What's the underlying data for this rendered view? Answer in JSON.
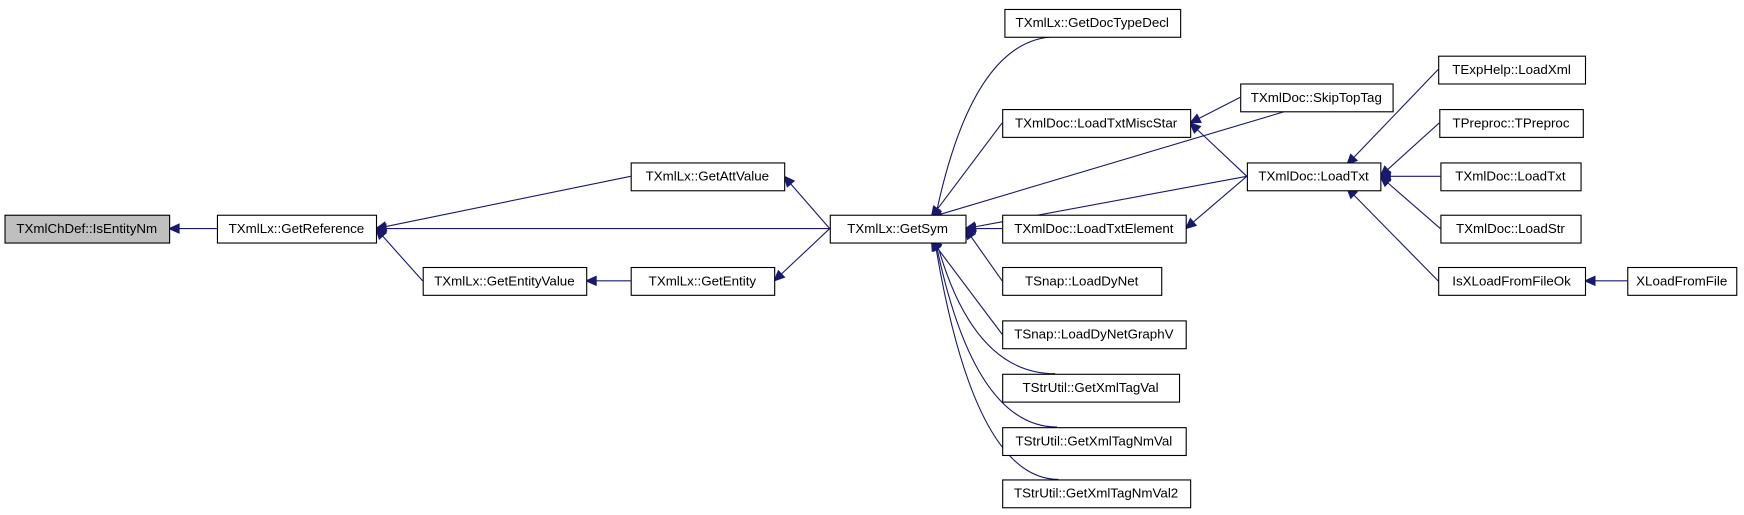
{
  "graph": {
    "edge_color": "#191970",
    "highlight_fill": "#bfbfbf",
    "nodes": [
      {
        "id": "isentitynm",
        "label": "TXmlChDef::IsEntityNm",
        "highlight": true
      },
      {
        "id": "getreference",
        "label": "TXmlLx::GetReference"
      },
      {
        "id": "getattvalue",
        "label": "TXmlLx::GetAttValue"
      },
      {
        "id": "getentityvalue",
        "label": "TXmlLx::GetEntityValue"
      },
      {
        "id": "getentity",
        "label": "TXmlLx::GetEntity"
      },
      {
        "id": "getsym",
        "label": "TXmlLx::GetSym"
      },
      {
        "id": "getdoctypedecl",
        "label": "TXmlLx::GetDocTypeDecl"
      },
      {
        "id": "skiptoptag",
        "label": "TXmlDoc::SkipTopTag"
      },
      {
        "id": "loadtxtmiscstar",
        "label": "TXmlDoc::LoadTxtMiscStar"
      },
      {
        "id": "loadtxt",
        "label": "TXmlDoc::LoadTxt"
      },
      {
        "id": "loadtxtelement",
        "label": "TXmlDoc::LoadTxtElement"
      },
      {
        "id": "loaddynet",
        "label": "TSnap::LoadDyNet"
      },
      {
        "id": "loaddynetgraphv",
        "label": "TSnap::LoadDyNetGraphV"
      },
      {
        "id": "getxmltagval",
        "label": "TStrUtil::GetXmlTagVal"
      },
      {
        "id": "getxmltagnmval",
        "label": "TStrUtil::GetXmlTagNmVal"
      },
      {
        "id": "getxmltagnmval2",
        "label": "TStrUtil::GetXmlTagNmVal2"
      },
      {
        "id": "loadxml",
        "label": "TExpHelp::LoadXml"
      },
      {
        "id": "tpreproc",
        "label": "TPreproc::TPreproc"
      },
      {
        "id": "loadtxt2",
        "label": "TXmlDoc::LoadTxt"
      },
      {
        "id": "loadstr",
        "label": "TXmlDoc::LoadStr"
      },
      {
        "id": "isxloadfromfileok",
        "label": "IsXLoadFromFileOk"
      },
      {
        "id": "xloadfromfile",
        "label": "XLoadFromFile"
      }
    ],
    "edges": [
      {
        "from": "getreference",
        "to": "isentitynm"
      },
      {
        "from": "getattvalue",
        "to": "getreference"
      },
      {
        "from": "getsym",
        "to": "getreference"
      },
      {
        "from": "getentityvalue",
        "to": "getreference"
      },
      {
        "from": "getsym",
        "to": "getattvalue"
      },
      {
        "from": "getentity",
        "to": "getentityvalue"
      },
      {
        "from": "getsym",
        "to": "getentity"
      },
      {
        "from": "getdoctypedecl",
        "to": "getsym"
      },
      {
        "from": "skiptoptag",
        "to": "getsym"
      },
      {
        "from": "loadtxtmiscstar",
        "to": "getsym"
      },
      {
        "from": "loadtxt",
        "to": "getsym"
      },
      {
        "from": "loadtxtelement",
        "to": "getsym"
      },
      {
        "from": "loaddynet",
        "to": "getsym"
      },
      {
        "from": "loaddynetgraphv",
        "to": "getsym"
      },
      {
        "from": "getxmltagval",
        "to": "getsym"
      },
      {
        "from": "getxmltagnmval",
        "to": "getsym"
      },
      {
        "from": "getxmltagnmval2",
        "to": "getsym"
      },
      {
        "from": "skiptoptag",
        "to": "loadtxtmiscstar"
      },
      {
        "from": "loadtxt",
        "to": "loadtxtmiscstar"
      },
      {
        "from": "loadtxt",
        "to": "loadtxtelement"
      },
      {
        "from": "loadxml",
        "to": "loadtxt"
      },
      {
        "from": "tpreproc",
        "to": "loadtxt"
      },
      {
        "from": "loadtxt2",
        "to": "loadtxt"
      },
      {
        "from": "loadstr",
        "to": "loadtxt"
      },
      {
        "from": "isxloadfromfileok",
        "to": "loadtxt"
      },
      {
        "from": "xloadfromfile",
        "to": "isxloadfromfileok"
      }
    ]
  }
}
